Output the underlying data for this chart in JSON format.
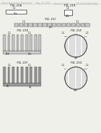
{
  "bg_color": "#f0f0eb",
  "header_color": "#aaaaaa",
  "line_color": "#444444",
  "text_color": "#222222",
  "gray_fill": "#999999",
  "light_gray": "#cccccc",
  "white": "#ffffff"
}
